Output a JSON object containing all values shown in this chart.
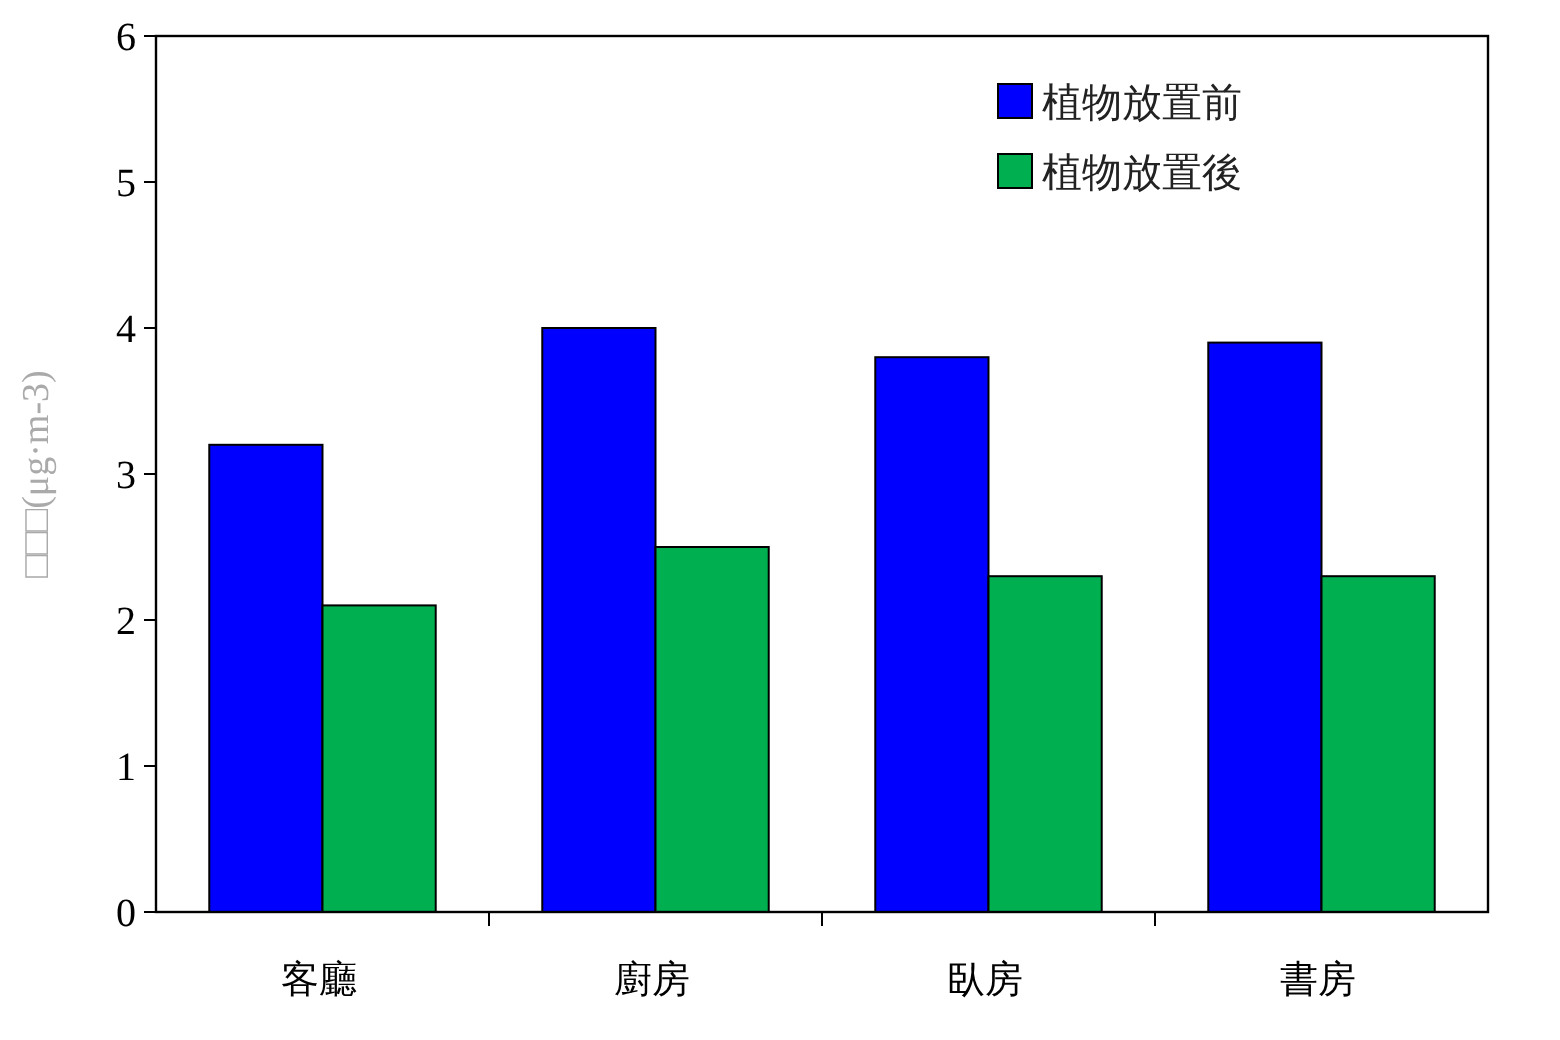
{
  "chart_data": {
    "type": "bar",
    "ylabel": "□□□(μg·m-3)",
    "categories": [
      "客廳",
      "廚房",
      "臥房",
      "書房"
    ],
    "series": [
      {
        "name": "植物放置前",
        "color": "#0000ff",
        "values": [
          3.2,
          4.0,
          3.8,
          3.9
        ]
      },
      {
        "name": "植物放置後",
        "color": "#00b050",
        "values": [
          2.1,
          2.5,
          2.3,
          2.3
        ]
      }
    ],
    "ylim": [
      0,
      6
    ],
    "yticks": [
      0,
      1,
      2,
      3,
      4,
      5,
      6
    ],
    "grid": false,
    "legend": "top right"
  }
}
